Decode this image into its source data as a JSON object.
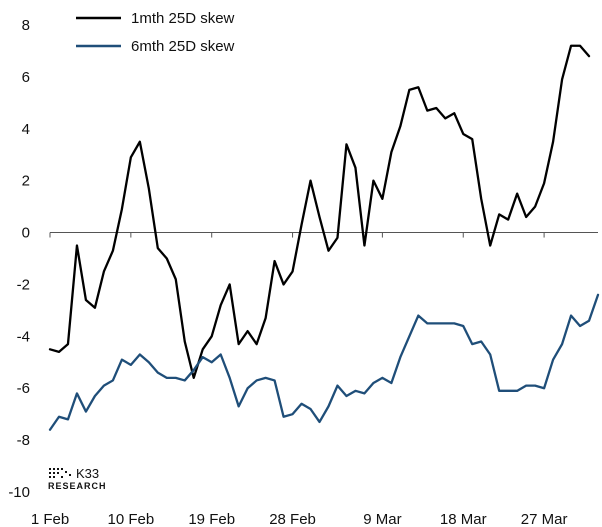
{
  "chart_data": {
    "type": "line",
    "title": "",
    "xlabel": "",
    "ylabel": "",
    "ylim": [
      -10,
      8
    ],
    "yticks": [
      "8",
      "6",
      "4",
      "2",
      "0",
      "-2",
      "-4",
      "-6",
      "-8",
      "-10"
    ],
    "x_range": [
      "2024-02-01",
      "2024-04-02"
    ],
    "xtick_labels": [
      {
        "date": "2024-02-01",
        "label": "1 Feb"
      },
      {
        "date": "2024-02-10",
        "label": "10 Feb"
      },
      {
        "date": "2024-02-19",
        "label": "19 Feb"
      },
      {
        "date": "2024-02-28",
        "label": "28 Feb"
      },
      {
        "date": "2024-03-09",
        "label": "9 Mar"
      },
      {
        "date": "2024-03-18",
        "label": "18 Mar"
      },
      {
        "date": "2024-03-27",
        "label": "27 Mar"
      }
    ],
    "grid": false,
    "legend": "top-left",
    "series": [
      {
        "name": "1mth 25D skew",
        "color": "#000000",
        "points": [
          [
            "2024-02-01",
            -4.5
          ],
          [
            "2024-02-02",
            -4.6
          ],
          [
            "2024-02-03",
            -4.3
          ],
          [
            "2024-02-04",
            -0.5
          ],
          [
            "2024-02-05",
            -2.6
          ],
          [
            "2024-02-06",
            -2.9
          ],
          [
            "2024-02-07",
            -1.5
          ],
          [
            "2024-02-08",
            -0.7
          ],
          [
            "2024-02-09",
            0.9
          ],
          [
            "2024-02-10",
            2.9
          ],
          [
            "2024-02-11",
            3.5
          ],
          [
            "2024-02-12",
            1.7
          ],
          [
            "2024-02-13",
            -0.6
          ],
          [
            "2024-02-14",
            -1.0
          ],
          [
            "2024-02-15",
            -1.8
          ],
          [
            "2024-02-16",
            -4.2
          ],
          [
            "2024-02-17",
            -5.6
          ],
          [
            "2024-02-18",
            -4.5
          ],
          [
            "2024-02-19",
            -4.0
          ],
          [
            "2024-02-20",
            -2.8
          ],
          [
            "2024-02-21",
            -2.0
          ],
          [
            "2024-02-22",
            -4.3
          ],
          [
            "2024-02-23",
            -3.8
          ],
          [
            "2024-02-24",
            -4.3
          ],
          [
            "2024-02-25",
            -3.3
          ],
          [
            "2024-02-26",
            -1.1
          ],
          [
            "2024-02-27",
            -2.0
          ],
          [
            "2024-02-28",
            -1.5
          ],
          [
            "2024-02-29",
            0.3
          ],
          [
            "2024-03-01",
            2.0
          ],
          [
            "2024-03-02",
            0.6
          ],
          [
            "2024-03-03",
            -0.7
          ],
          [
            "2024-03-04",
            -0.2
          ],
          [
            "2024-03-05",
            3.4
          ],
          [
            "2024-03-06",
            2.5
          ],
          [
            "2024-03-07",
            -0.5
          ],
          [
            "2024-03-08",
            2.0
          ],
          [
            "2024-03-09",
            1.3
          ],
          [
            "2024-03-10",
            3.1
          ],
          [
            "2024-03-11",
            4.1
          ],
          [
            "2024-03-12",
            5.5
          ],
          [
            "2024-03-13",
            5.6
          ],
          [
            "2024-03-14",
            4.7
          ],
          [
            "2024-03-15",
            4.8
          ],
          [
            "2024-03-16",
            4.4
          ],
          [
            "2024-03-17",
            4.6
          ],
          [
            "2024-03-18",
            3.8
          ],
          [
            "2024-03-19",
            3.6
          ],
          [
            "2024-03-20",
            1.3
          ],
          [
            "2024-03-21",
            -0.5
          ],
          [
            "2024-03-22",
            0.7
          ],
          [
            "2024-03-23",
            0.5
          ],
          [
            "2024-03-24",
            1.5
          ],
          [
            "2024-03-25",
            0.6
          ],
          [
            "2024-03-26",
            1.0
          ],
          [
            "2024-03-27",
            1.9
          ],
          [
            "2024-03-28",
            3.5
          ],
          [
            "2024-03-29",
            5.9
          ],
          [
            "2024-03-30",
            7.2
          ],
          [
            "2024-03-31",
            7.2
          ],
          [
            "2024-04-01",
            6.8
          ]
        ]
      },
      {
        "name": "6mth 25D skew",
        "color": "#1f4e79",
        "points": [
          [
            "2024-02-01",
            -7.6
          ],
          [
            "2024-02-02",
            -7.1
          ],
          [
            "2024-02-03",
            -7.2
          ],
          [
            "2024-02-04",
            -6.2
          ],
          [
            "2024-02-05",
            -6.9
          ],
          [
            "2024-02-06",
            -6.3
          ],
          [
            "2024-02-07",
            -5.9
          ],
          [
            "2024-02-08",
            -5.7
          ],
          [
            "2024-02-09",
            -4.9
          ],
          [
            "2024-02-10",
            -5.1
          ],
          [
            "2024-02-11",
            -4.7
          ],
          [
            "2024-02-12",
            -5.0
          ],
          [
            "2024-02-13",
            -5.4
          ],
          [
            "2024-02-14",
            -5.6
          ],
          [
            "2024-02-15",
            -5.6
          ],
          [
            "2024-02-16",
            -5.7
          ],
          [
            "2024-02-17",
            -5.3
          ],
          [
            "2024-02-18",
            -4.8
          ],
          [
            "2024-02-19",
            -5.0
          ],
          [
            "2024-02-20",
            -4.7
          ],
          [
            "2024-02-21",
            -5.6
          ],
          [
            "2024-02-22",
            -6.7
          ],
          [
            "2024-02-23",
            -6.0
          ],
          [
            "2024-02-24",
            -5.7
          ],
          [
            "2024-02-25",
            -5.6
          ],
          [
            "2024-02-26",
            -5.7
          ],
          [
            "2024-02-27",
            -7.1
          ],
          [
            "2024-02-28",
            -7.0
          ],
          [
            "2024-02-29",
            -6.6
          ],
          [
            "2024-03-01",
            -6.8
          ],
          [
            "2024-03-02",
            -7.3
          ],
          [
            "2024-03-03",
            -6.7
          ],
          [
            "2024-03-04",
            -5.9
          ],
          [
            "2024-03-05",
            -6.3
          ],
          [
            "2024-03-06",
            -6.1
          ],
          [
            "2024-03-07",
            -6.2
          ],
          [
            "2024-03-08",
            -5.8
          ],
          [
            "2024-03-09",
            -5.6
          ],
          [
            "2024-03-10",
            -5.8
          ],
          [
            "2024-03-11",
            -4.8
          ],
          [
            "2024-03-12",
            -4.0
          ],
          [
            "2024-03-13",
            -3.2
          ],
          [
            "2024-03-14",
            -3.5
          ],
          [
            "2024-03-15",
            -3.5
          ],
          [
            "2024-03-16",
            -3.5
          ],
          [
            "2024-03-17",
            -3.5
          ],
          [
            "2024-03-18",
            -3.6
          ],
          [
            "2024-03-19",
            -4.3
          ],
          [
            "2024-03-20",
            -4.2
          ],
          [
            "2024-03-21",
            -4.7
          ],
          [
            "2024-03-22",
            -6.1
          ],
          [
            "2024-03-23",
            -6.1
          ],
          [
            "2024-03-24",
            -6.1
          ],
          [
            "2024-03-25",
            -5.9
          ],
          [
            "2024-03-26",
            -5.9
          ],
          [
            "2024-03-27",
            -6.0
          ],
          [
            "2024-03-28",
            -4.9
          ],
          [
            "2024-03-29",
            -4.3
          ],
          [
            "2024-03-30",
            -3.2
          ],
          [
            "2024-03-31",
            -3.6
          ],
          [
            "2024-04-01",
            -3.4
          ],
          [
            "2024-04-02",
            -2.4
          ]
        ]
      }
    ]
  },
  "legend": {
    "items": [
      {
        "label": "1mth 25D skew",
        "color": "#000000"
      },
      {
        "label": "6mth 25D skew",
        "color": "#1f4e79"
      }
    ]
  },
  "logo": {
    "name": "K33",
    "subtitle": "RESEARCH"
  }
}
